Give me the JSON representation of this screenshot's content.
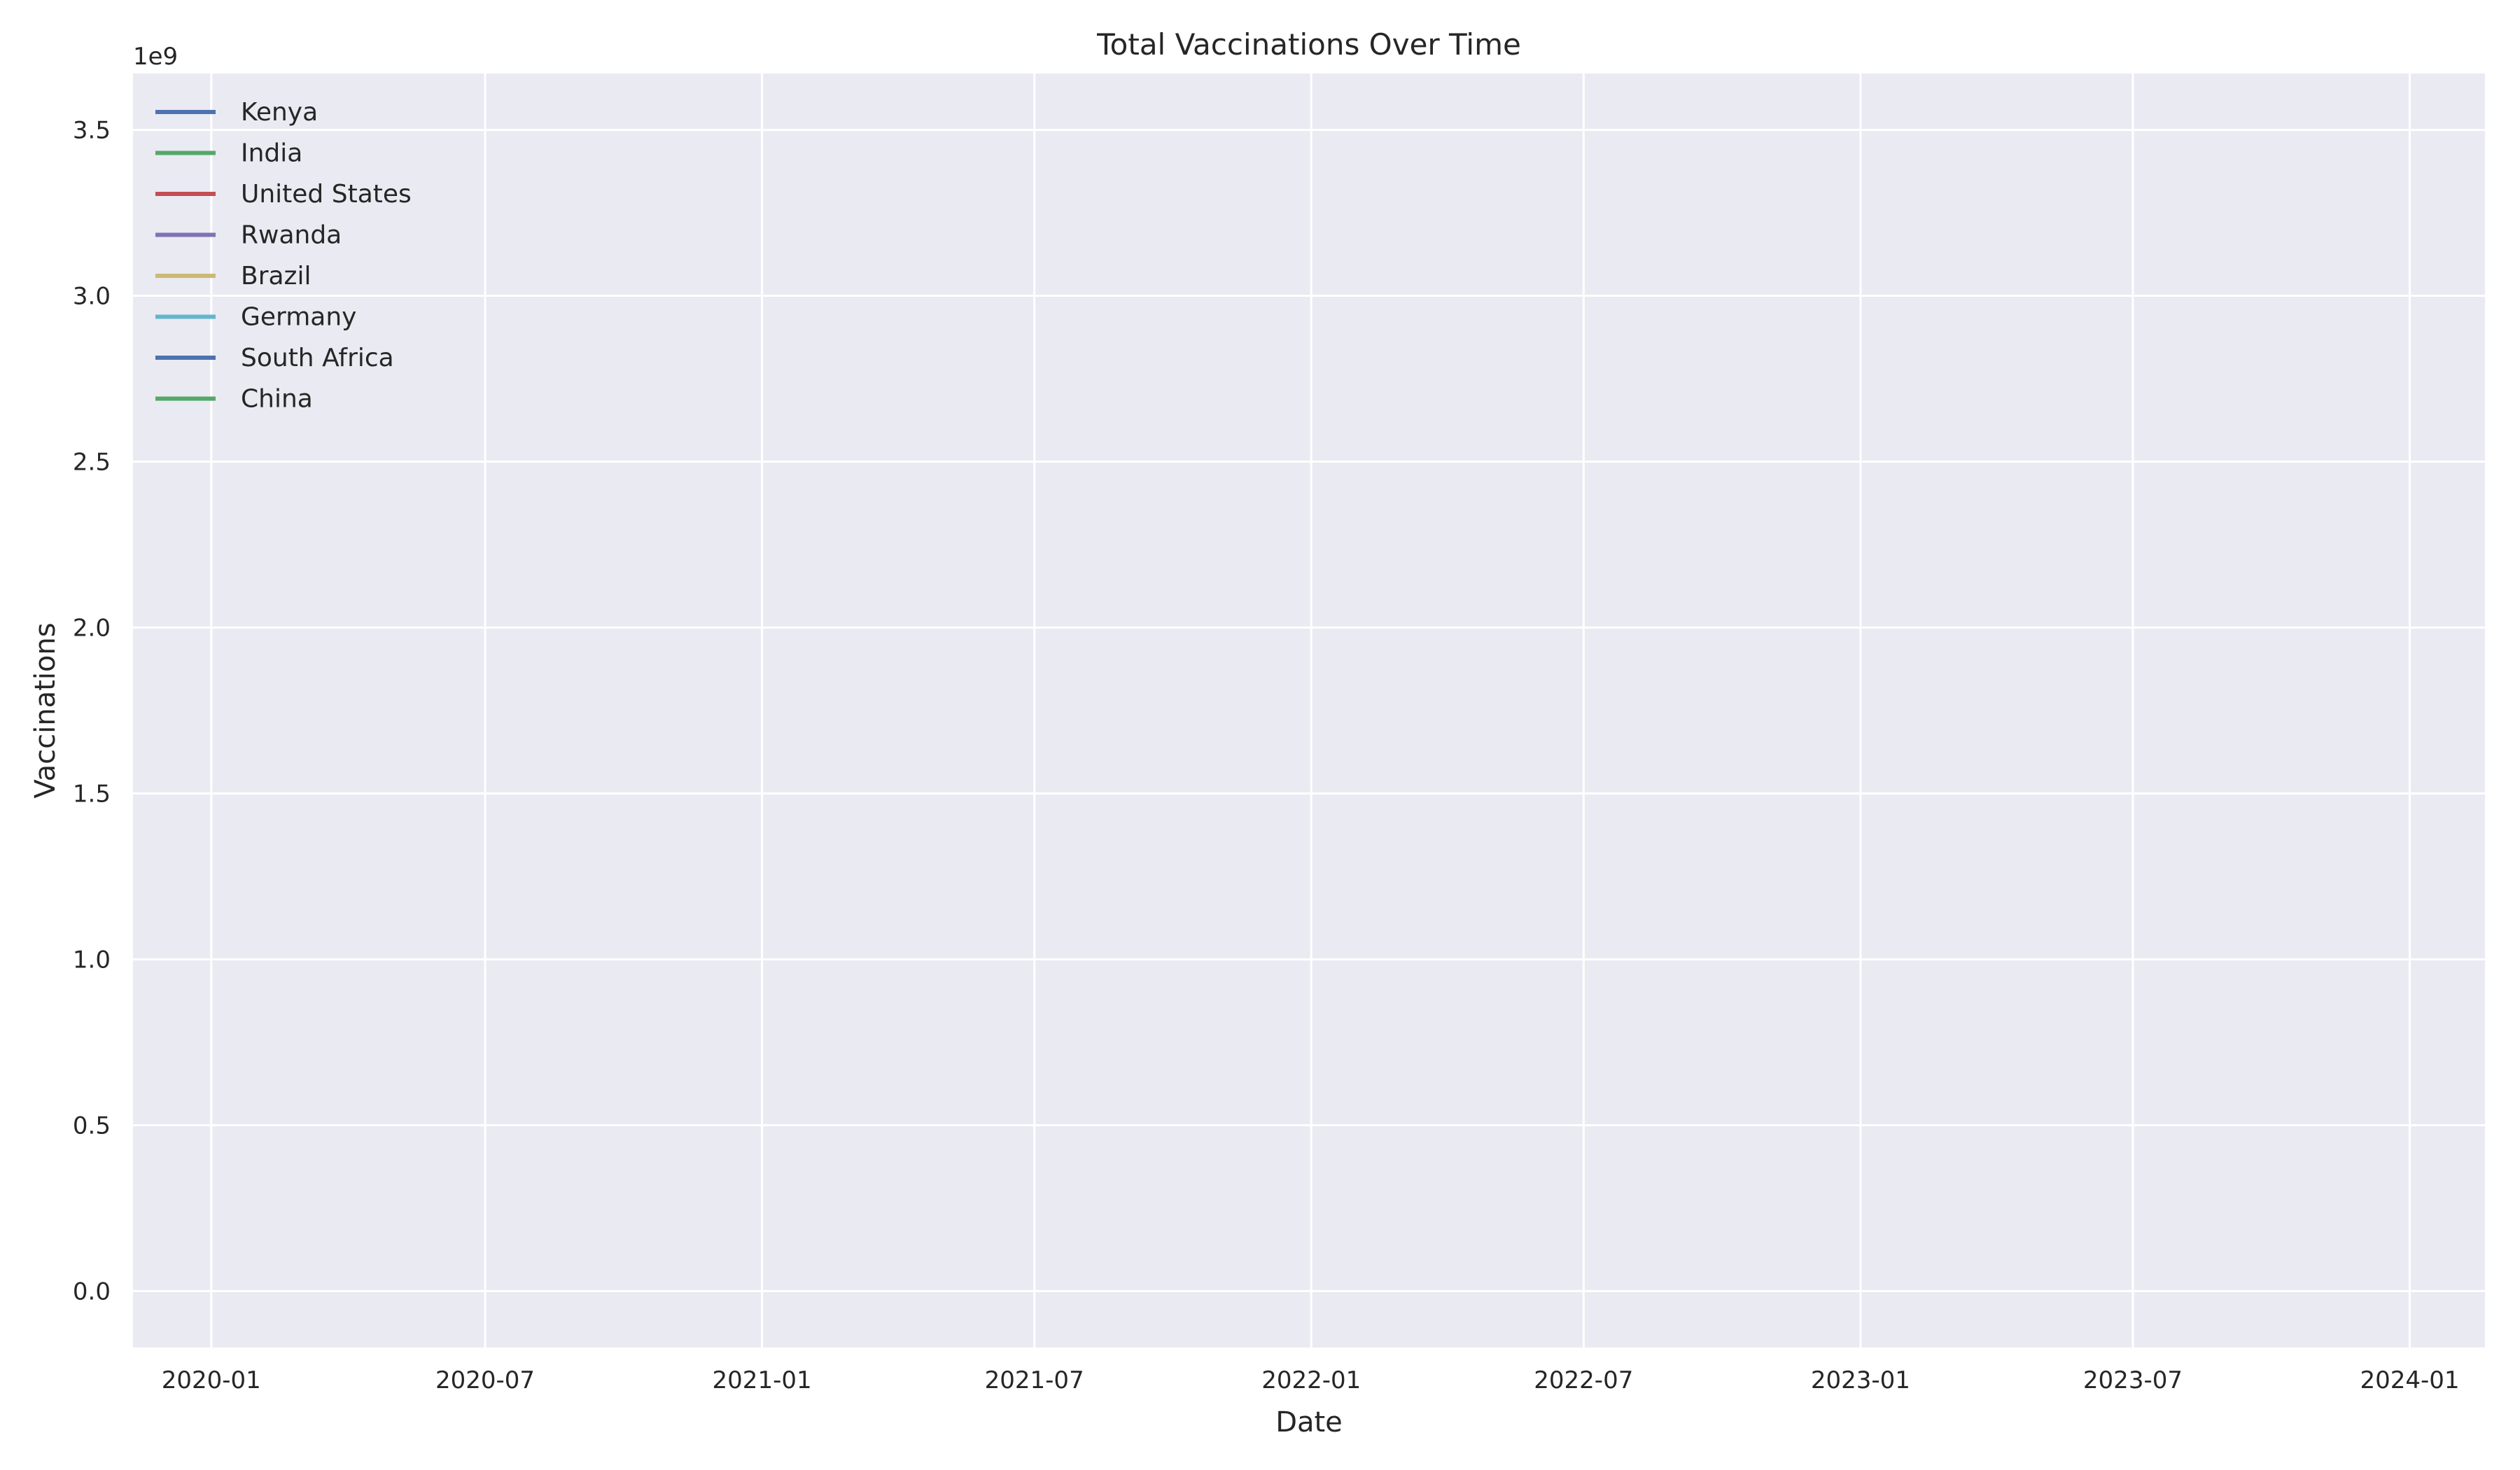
{
  "chart_data": {
    "type": "line",
    "title": "Total Vaccinations Over Time",
    "xlabel": "Date",
    "ylabel": "Vaccinations",
    "y_offset_label": "1e9",
    "xlim": [
      "2019-11-10",
      "2024-02-20"
    ],
    "ylim": [
      -0.17,
      3.67
    ],
    "x_ticks": [
      "2020-01",
      "2020-07",
      "2021-01",
      "2021-07",
      "2022-01",
      "2022-07",
      "2023-01",
      "2023-07",
      "2024-01"
    ],
    "y_ticks": [
      "0.0",
      "0.5",
      "1.0",
      "1.5",
      "2.0",
      "2.5",
      "3.0",
      "3.5"
    ],
    "grid": true,
    "legend_position": "top-left",
    "colors": {
      "blue": "#4c72b0",
      "green": "#55a868",
      "red": "#c44e52",
      "purple": "#8172b3",
      "gold": "#ccb974",
      "cyan": "#64b5cd",
      "background": "#eaeaf2"
    },
    "series": [
      {
        "name": "Kenya",
        "color": "#4c72b0",
        "x": [],
        "y": []
      },
      {
        "name": "India",
        "color": "#55a868",
        "x": [],
        "y": []
      },
      {
        "name": "United States",
        "color": "#c44e52",
        "x": [],
        "y": []
      },
      {
        "name": "Rwanda",
        "color": "#8172b3",
        "x": [],
        "y": []
      },
      {
        "name": "Brazil",
        "color": "#ccb974",
        "x": [],
        "y": []
      },
      {
        "name": "Germany",
        "color": "#64b5cd",
        "x": [],
        "y": []
      },
      {
        "name": "South Africa",
        "color": "#4c72b0",
        "x": [],
        "y": []
      },
      {
        "name": "China",
        "color": "#55a868",
        "x": [],
        "y": []
      }
    ]
  }
}
